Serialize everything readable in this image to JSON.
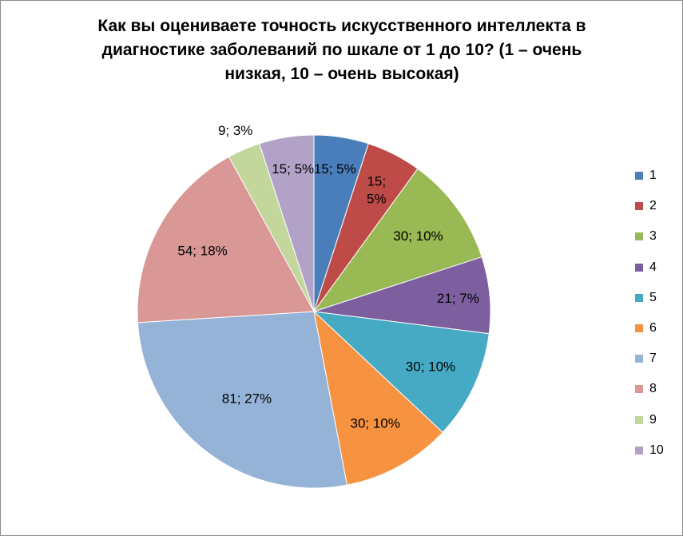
{
  "chart_data": {
    "type": "pie",
    "title": "Как вы оцениваете точность искусственного интеллекта в диагностике заболеваний по шкале от 1 до 10? (1 – очень низкая, 10 – очень высокая)",
    "legend_position": "right",
    "categories": [
      "1",
      "2",
      "3",
      "4",
      "5",
      "6",
      "7",
      "8",
      "9",
      "10"
    ],
    "values": [
      15,
      15,
      30,
      21,
      30,
      30,
      81,
      54,
      9,
      15
    ],
    "percents": [
      "5%",
      "5%",
      "10%",
      "7%",
      "10%",
      "10%",
      "27%",
      "18%",
      "3%",
      "5%"
    ],
    "data_labels": [
      "15; 5%",
      "15; 5%",
      "30; 10%",
      "21; 7%",
      "30; 10%",
      "30; 10%",
      "81; 27%",
      "54; 18%",
      "9; 3%",
      "15; 5%"
    ],
    "colors": [
      "#4a7ebb",
      "#be4b48",
      "#98b954",
      "#7d5fa0",
      "#46aac5",
      "#f69240",
      "#95b3d7",
      "#d99795",
      "#c3d69b",
      "#b3a2c7"
    ]
  }
}
